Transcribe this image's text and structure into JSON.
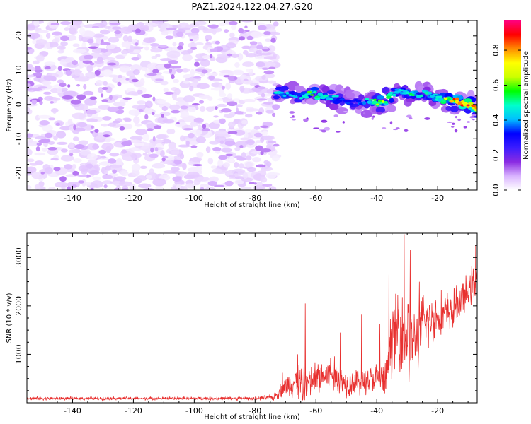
{
  "chart_data": [
    {
      "type": "heatmap",
      "title": "PAZ1.2024.122.04.27.G20",
      "xlabel": "Height of straight line (km)",
      "ylabel": "Frequency (Hz)",
      "xlim": [
        -155,
        -7
      ],
      "ylim": [
        -25,
        24.5
      ],
      "x_ticks": [
        -140,
        -120,
        -100,
        -80,
        -60,
        -40,
        -20
      ],
      "y_ticks": [
        -20,
        -10,
        0,
        10,
        20
      ],
      "colorbar": {
        "label": "Normalized spectral amplitude",
        "range": [
          0,
          0.97
        ],
        "ticks": [
          0.0,
          0.2,
          0.4,
          0.6,
          0.8
        ],
        "colormap": [
          "#ffffff",
          "#d9b3ff",
          "#8a2be2",
          "#3b1cff",
          "#0000ff",
          "#00bfff",
          "#00ffcc",
          "#00ff00",
          "#ccff00",
          "#ffff00",
          "#ff8c00",
          "#ff0000",
          "#ff0080"
        ]
      },
      "signal_ridge": {
        "x": [
          -73,
          -70,
          -66,
          -62,
          -58,
          -54,
          -50,
          -46,
          -42,
          -38,
          -34,
          -30,
          -26,
          -22,
          -18,
          -14,
          -10,
          -7
        ],
        "frequency": [
          3.5,
          3,
          2.5,
          3,
          2.5,
          2,
          1,
          0.5,
          1,
          0.5,
          3.5,
          3.5,
          3,
          2.5,
          1.5,
          1,
          0,
          -1
        ],
        "amplitude": [
          0.5,
          0.45,
          0.4,
          0.55,
          0.5,
          0.45,
          0.35,
          0.4,
          0.5,
          0.7,
          0.45,
          0.55,
          0.45,
          0.5,
          0.6,
          0.85,
          0.85,
          0.75
        ]
      },
      "noise_region": {
        "x_range": [
          -155,
          -73
        ],
        "amplitude_range": [
          0.0,
          0.12
        ]
      }
    },
    {
      "type": "line",
      "xlabel": "Height of straight line (km)",
      "ylabel": "SNR (10 * v/v)",
      "xlim": [
        -155,
        -7
      ],
      "ylim": [
        0,
        3500
      ],
      "x_ticks": [
        -140,
        -120,
        -100,
        -80,
        -60,
        -40,
        -20
      ],
      "y_ticks": [
        1000,
        2000,
        3000
      ],
      "color": "#e8302f",
      "envelope": {
        "x": [
          -155,
          -80,
          -74,
          -70,
          -66,
          -64,
          -62,
          -60,
          -55,
          -50,
          -45,
          -40,
          -37,
          -35,
          -32,
          -30,
          -28,
          -25,
          -20,
          -15,
          -10,
          -7
        ],
        "base": [
          90,
          90,
          110,
          350,
          450,
          400,
          420,
          500,
          600,
          400,
          450,
          500,
          450,
          1400,
          1600,
          1500,
          1200,
          1600,
          1800,
          1900,
          2300,
          2600
        ],
        "amp": [
          40,
          40,
          80,
          250,
          450,
          600,
          400,
          450,
          500,
          350,
          350,
          400,
          450,
          900,
          1100,
          1400,
          800,
          800,
          600,
          500,
          450,
          500
        ]
      },
      "peaks": [
        {
          "x": -71,
          "y": 620
        },
        {
          "x": -66,
          "y": 1000
        },
        {
          "x": -63.5,
          "y": 2050
        },
        {
          "x": -52,
          "y": 1450
        },
        {
          "x": -45,
          "y": 1820
        },
        {
          "x": -39,
          "y": 1620
        },
        {
          "x": -36,
          "y": 2650
        },
        {
          "x": -31,
          "y": 3480
        },
        {
          "x": -29,
          "y": 3150
        },
        {
          "x": -26,
          "y": 2500
        },
        {
          "x": -7.5,
          "y": 3250
        }
      ]
    }
  ]
}
